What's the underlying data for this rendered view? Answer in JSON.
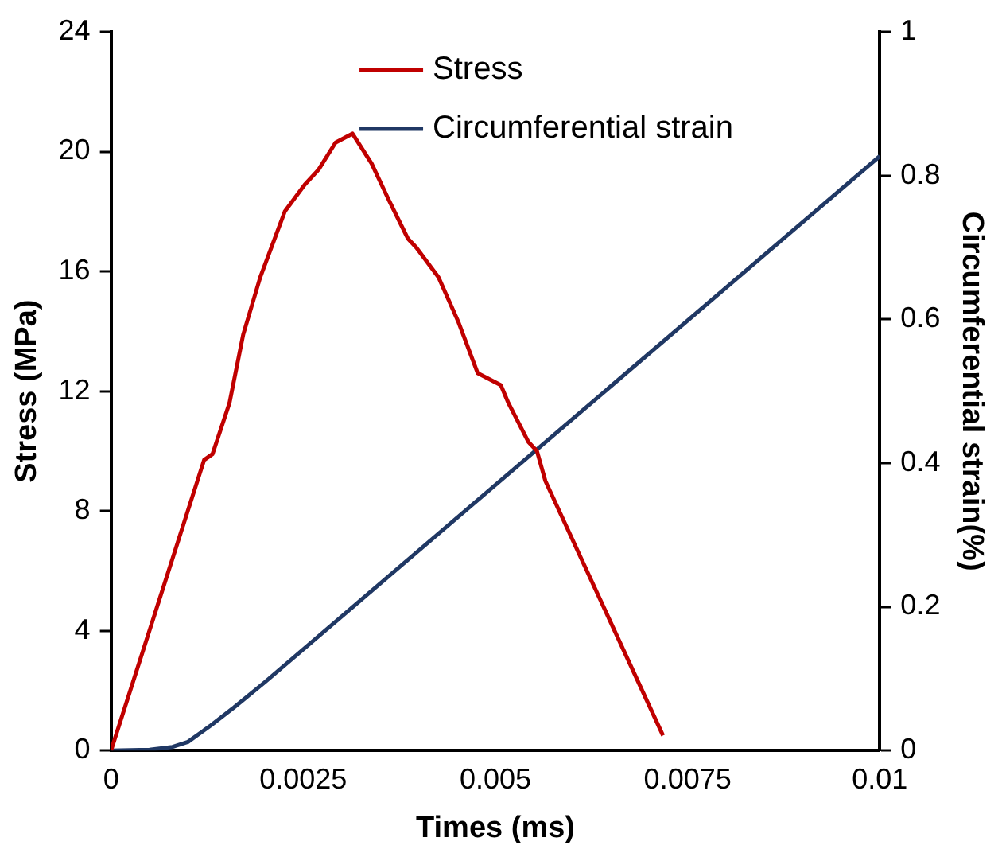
{
  "chart_data": {
    "type": "line",
    "xlabel": "Times (ms)",
    "ylabel": "Stress (MPa)",
    "y2label": "Circumferential strain(%)",
    "xlim": [
      0,
      0.01
    ],
    "xticks": [
      0,
      0.0025,
      0.005,
      0.0075,
      0.01
    ],
    "ylim": [
      0,
      24
    ],
    "yticks": [
      0,
      4,
      8,
      12,
      16,
      20,
      24
    ],
    "y2lim": [
      0,
      1
    ],
    "y2ticks": [
      0,
      0.2,
      0.4,
      0.6,
      0.8,
      1
    ],
    "grid": false,
    "legend": "top",
    "marker": "none",
    "line_style": "solid",
    "series": [
      {
        "name": "Stress",
        "color": "#c00000",
        "x": [
          0,
          0.00121,
          0.00132,
          0.00154,
          0.00172,
          0.00194,
          0.00226,
          0.00252,
          0.0027,
          0.00292,
          0.00314,
          0.00339,
          0.00361,
          0.00386,
          0.00397,
          0.00426,
          0.00452,
          0.00477,
          0.00507,
          0.00517,
          0.00543,
          0.00554,
          0.00565,
          0.00718
        ],
        "values": [
          0,
          9.7,
          9.9,
          11.6,
          13.9,
          15.8,
          18,
          18.9,
          19.4,
          20.3,
          20.6,
          19.6,
          18.4,
          17.1,
          16.8,
          15.8,
          14.3,
          12.6,
          12.2,
          11.6,
          10.3,
          10,
          9,
          0.5
        ]
      },
      {
        "name": "Circumferential strain",
        "color": "#203864",
        "axis": "y2",
        "x": [
          0,
          0.0005,
          0.0008,
          0.001,
          0.0013,
          0.0016,
          0.002,
          0.01
        ],
        "values": [
          0,
          0.001,
          0.005,
          0.012,
          0.035,
          0.06,
          0.095,
          0.827
        ]
      }
    ]
  }
}
